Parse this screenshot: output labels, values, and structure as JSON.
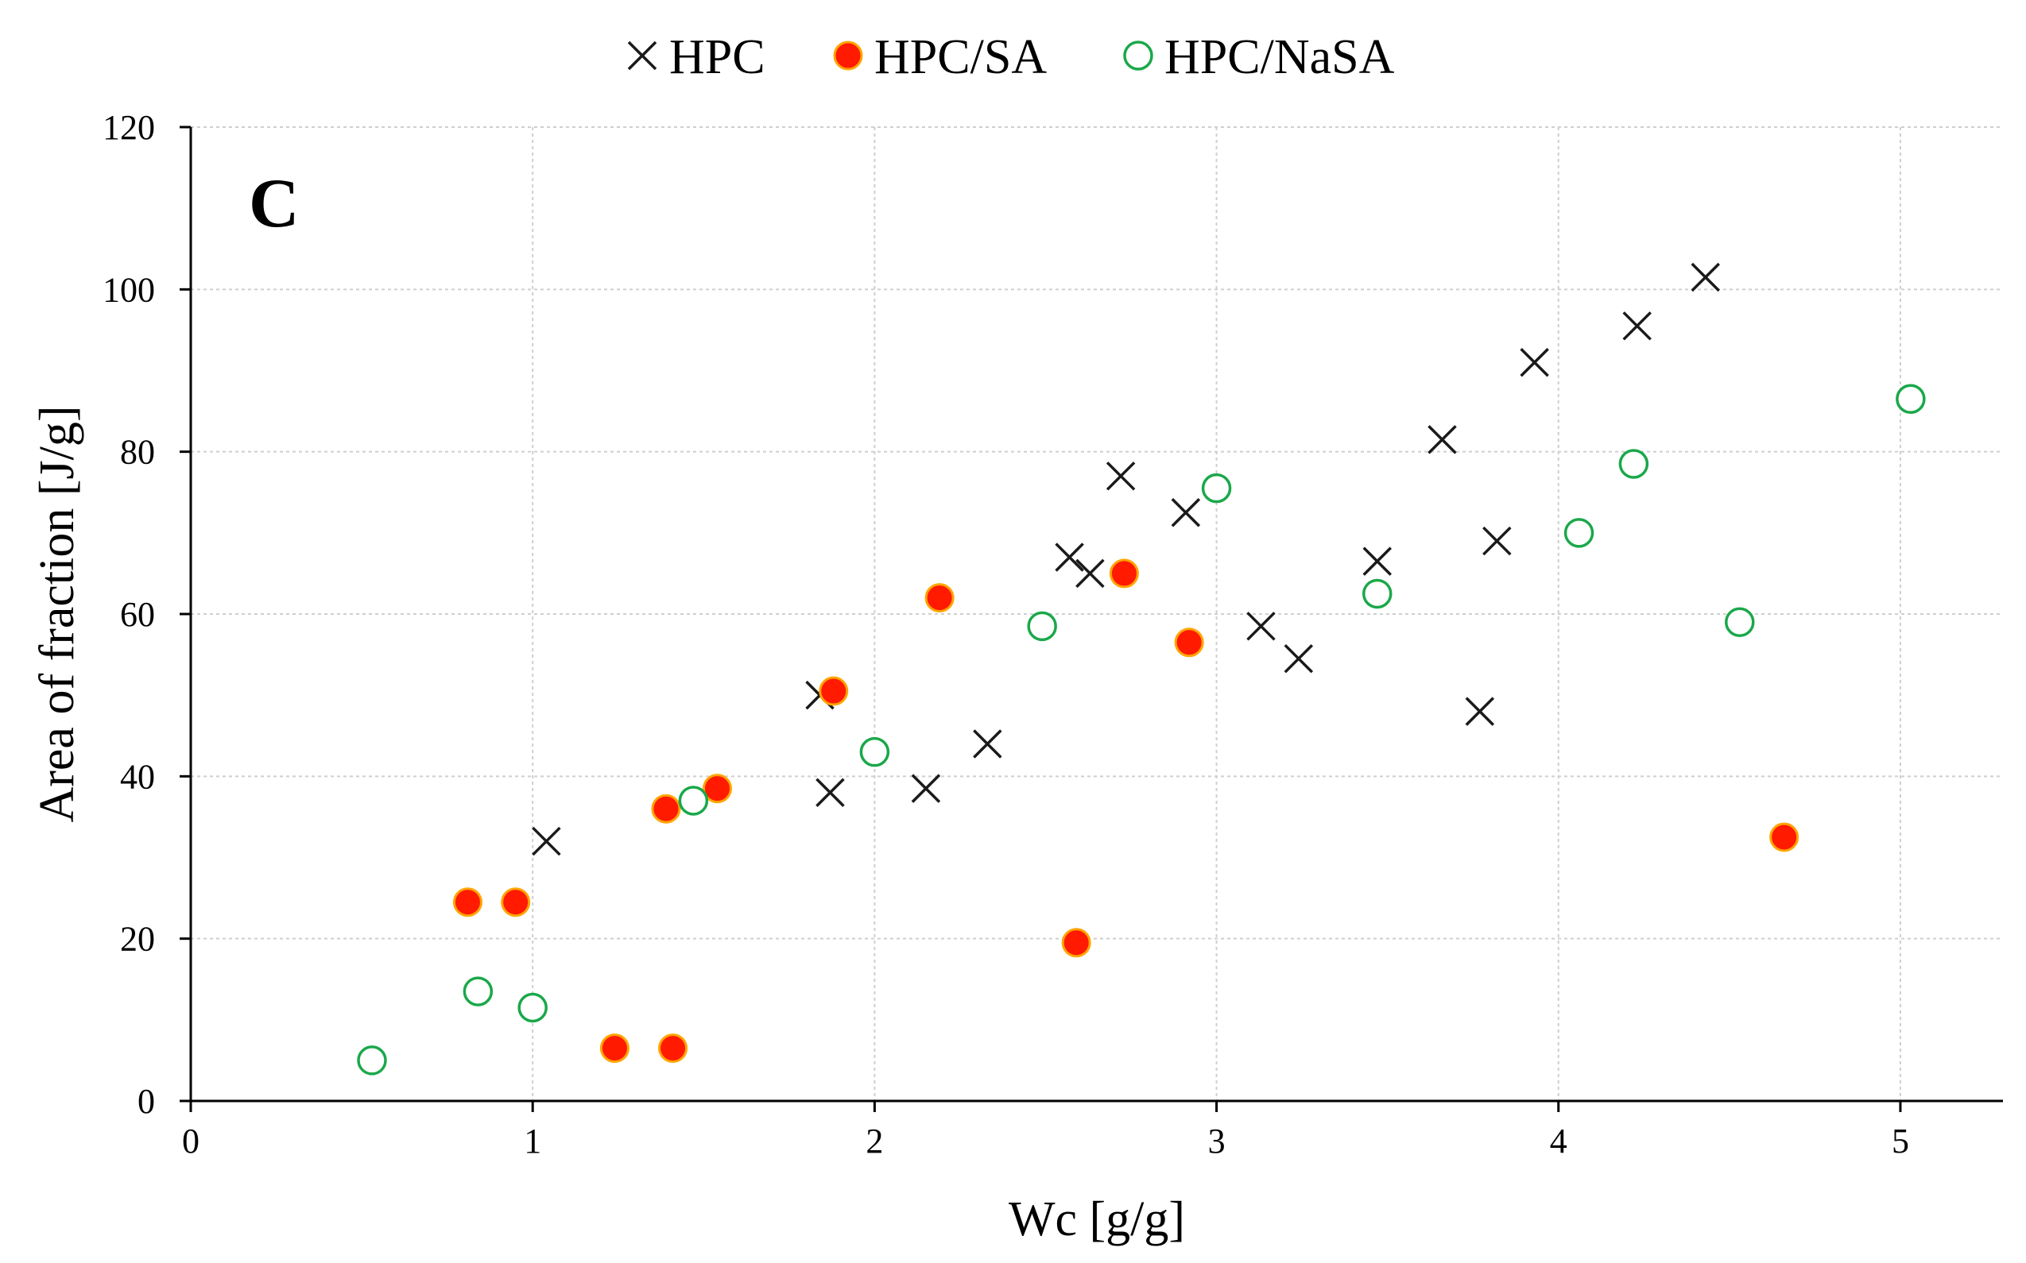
{
  "chart_data": {
    "type": "scatter",
    "panel_label": "C",
    "xlabel": "Wc [g/g]",
    "ylabel": "Area of fraction [J/g]",
    "xlim": [
      0,
      5.3
    ],
    "ylim": [
      0,
      120
    ],
    "xticks": [
      0,
      1,
      2,
      3,
      4,
      5
    ],
    "yticks": [
      0,
      20,
      40,
      60,
      80,
      100,
      120
    ],
    "grid": true,
    "legend_position": "top-center",
    "series": [
      {
        "name": "HPC",
        "marker": "x",
        "color": "#1a1a1a",
        "points": [
          [
            1.04,
            32
          ],
          [
            1.84,
            50
          ],
          [
            1.87,
            38
          ],
          [
            2.15,
            38.5
          ],
          [
            2.33,
            44
          ],
          [
            2.57,
            67
          ],
          [
            2.63,
            65
          ],
          [
            2.72,
            77
          ],
          [
            2.91,
            72.5
          ],
          [
            3.13,
            58.5
          ],
          [
            3.24,
            54.5
          ],
          [
            3.47,
            66.5
          ],
          [
            3.66,
            81.5
          ],
          [
            3.77,
            48
          ],
          [
            3.82,
            69
          ],
          [
            3.93,
            91
          ],
          [
            4.23,
            95.5
          ],
          [
            4.43,
            101.5
          ]
        ]
      },
      {
        "name": "HPC/SA",
        "marker": "filled-circle",
        "color": "#ff1a00",
        "edge_color": "#ffa500",
        "points": [
          [
            0.81,
            24.5
          ],
          [
            0.95,
            24.5
          ],
          [
            1.24,
            6.5
          ],
          [
            1.39,
            36
          ],
          [
            1.41,
            6.5
          ],
          [
            1.54,
            38.5
          ],
          [
            1.88,
            50.5
          ],
          [
            2.19,
            62
          ],
          [
            2.59,
            19.5
          ],
          [
            2.73,
            65
          ],
          [
            2.92,
            56.5
          ],
          [
            4.66,
            32.5
          ]
        ]
      },
      {
        "name": "HPC/NaSA",
        "marker": "open-circle",
        "color": "#1aa84a",
        "points": [
          [
            0.53,
            5
          ],
          [
            0.84,
            13.5
          ],
          [
            1.0,
            11.5
          ],
          [
            1.47,
            37
          ],
          [
            2.0,
            43
          ],
          [
            2.49,
            58.5
          ],
          [
            3.0,
            75.5
          ],
          [
            3.47,
            62.5
          ],
          [
            4.06,
            70
          ],
          [
            4.22,
            78.5
          ],
          [
            4.53,
            59
          ],
          [
            5.03,
            86.5
          ]
        ]
      }
    ]
  }
}
